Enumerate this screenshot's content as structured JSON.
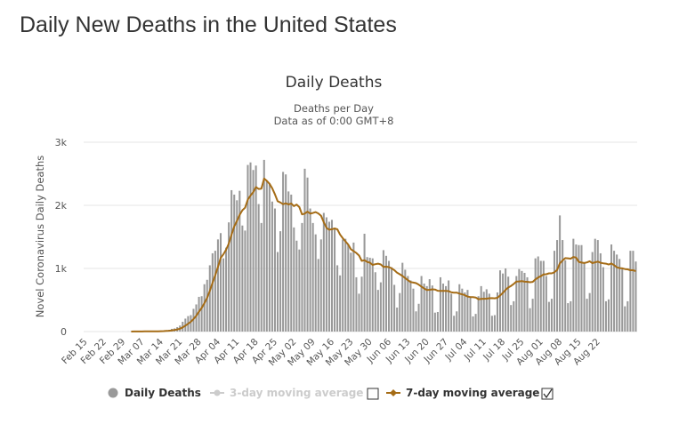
{
  "page": {
    "title": "Daily New Deaths in the United States"
  },
  "chart_data": {
    "type": "bar",
    "title": "Daily Deaths",
    "subtitle_lines": [
      "Deaths per Day",
      "Data as of 0:00 GMT+8"
    ],
    "xlabel": "",
    "ylabel": "Novel Coronavirus Daily Deaths",
    "ylim": [
      0,
      3000
    ],
    "yticks": [
      0,
      1000,
      2000,
      3000
    ],
    "ytick_labels": [
      "0",
      "1k",
      "2k",
      "3k"
    ],
    "grid": true,
    "legend_position": "bottom",
    "x": {
      "start": "2020-02-15",
      "tick_labels": [
        "Feb 15",
        "Feb 22",
        "Feb 29",
        "Mar 07",
        "Mar 14",
        "Mar 21",
        "Mar 28",
        "Apr 04",
        "Apr 11",
        "Apr 18",
        "Apr 25",
        "May 02",
        "May 09",
        "May 16",
        "May 23",
        "May 30",
        "Jun 06",
        "Jun 13",
        "Jun 20",
        "Jun 27",
        "Jul 04",
        "Jul 11",
        "Jul 18",
        "Jul 25",
        "Aug 01",
        "Aug 08",
        "Aug 15",
        "Aug 22"
      ]
    },
    "series": [
      {
        "name": "Daily Deaths",
        "kind": "bar",
        "color": "#999999",
        "values": [
          0,
          0,
          0,
          0,
          0,
          0,
          0,
          0,
          0,
          0,
          0,
          0,
          0,
          0,
          1,
          0,
          1,
          2,
          4,
          0,
          2,
          4,
          4,
          2,
          5,
          7,
          2,
          8,
          10,
          12,
          21,
          28,
          43,
          50,
          70,
          95,
          155,
          205,
          245,
          260,
          360,
          430,
          550,
          560,
          750,
          820,
          1050,
          1240,
          1280,
          1460,
          1560,
          1160,
          1330,
          1730,
          2240,
          2170,
          2080,
          2230,
          1680,
          1600,
          2640,
          2680,
          2560,
          2630,
          2020,
          1720,
          2720,
          2390,
          2350,
          2060,
          1950,
          1260,
          1590,
          2530,
          2490,
          2220,
          2170,
          1650,
          1440,
          1300,
          1720,
          2580,
          2440,
          1950,
          1720,
          1540,
          1150,
          1460,
          1880,
          1810,
          1740,
          1770,
          1630,
          1050,
          890,
          1460,
          1470,
          1380,
          1250,
          1410,
          860,
          600,
          870,
          1550,
          1180,
          1170,
          1160,
          940,
          660,
          780,
          1290,
          1200,
          1120,
          1020,
          740,
          380,
          610,
          1090,
          980,
          880,
          810,
          680,
          320,
          440,
          880,
          760,
          720,
          830,
          730,
          300,
          310,
          860,
          760,
          720,
          810,
          600,
          250,
          320,
          750,
          680,
          620,
          660,
          550,
          240,
          280,
          560,
          720,
          630,
          670,
          600,
          250,
          260,
          620,
          970,
          920,
          1000,
          870,
          420,
          480,
          880,
          990,
          960,
          930,
          860,
          370,
          520,
          1160,
          1190,
          1120,
          1120,
          880,
          470,
          520,
          1280,
          1450,
          1840,
          1450,
          1130,
          450,
          480,
          1470,
          1380,
          1370,
          1370,
          1080,
          520,
          610,
          1260,
          1470,
          1450,
          1240,
          1020,
          480,
          510,
          1380,
          1280,
          1220,
          1150,
          990,
          400,
          480,
          1280,
          1280,
          1110
        ]
      },
      {
        "name": "3-day moving average",
        "kind": "line",
        "visible": false,
        "color": "#cccccc"
      },
      {
        "name": "7-day moving average",
        "kind": "line",
        "color": "#a56c16",
        "window": 7
      }
    ]
  },
  "legend": {
    "daily_label": "Daily Deaths",
    "avg3_label": "3-day moving average",
    "avg7_label": "7-day moving average",
    "avg3_checked": false,
    "avg7_checked": true
  }
}
